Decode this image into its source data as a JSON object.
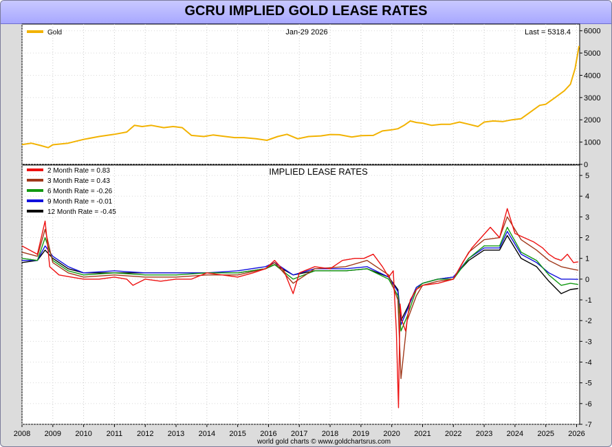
{
  "title": "GCRU IMPLIED GOLD LEASE RATES",
  "footer": "world gold charts © www.goldchartsrus.com",
  "colors": {
    "gold": "#f2b200",
    "m2": "#ee1111",
    "m3": "#a0381a",
    "m6": "#119911",
    "m9": "#1111dd",
    "m12": "#000000",
    "title_bg": "#b6b6ff"
  },
  "chart_data": [
    {
      "type": "line",
      "panel": "price",
      "date_label": "Jan-29  2026",
      "last_label": "Last = 5318.4",
      "series": [
        {
          "name": "Gold",
          "x": [
            2008.0,
            2008.3,
            2008.6,
            2008.85,
            2009.0,
            2009.5,
            2010.0,
            2010.5,
            2011.0,
            2011.4,
            2011.65,
            2011.9,
            2012.2,
            2012.6,
            2012.9,
            2013.2,
            2013.5,
            2013.9,
            2014.2,
            2014.6,
            2014.9,
            2015.2,
            2015.6,
            2015.95,
            2016.3,
            2016.6,
            2016.95,
            2017.3,
            2017.7,
            2018.0,
            2018.3,
            2018.7,
            2019.0,
            2019.4,
            2019.7,
            2020.0,
            2020.2,
            2020.4,
            2020.6,
            2020.8,
            2021.0,
            2021.3,
            2021.6,
            2021.9,
            2022.2,
            2022.5,
            2022.8,
            2023.0,
            2023.3,
            2023.6,
            2023.9,
            2024.2,
            2024.5,
            2024.8,
            2025.0,
            2025.3,
            2025.6,
            2025.8,
            2025.95,
            2026.08
          ],
          "values": [
            890,
            950,
            850,
            750,
            880,
            950,
            1120,
            1250,
            1350,
            1450,
            1750,
            1700,
            1750,
            1650,
            1700,
            1650,
            1300,
            1250,
            1320,
            1250,
            1200,
            1200,
            1150,
            1080,
            1250,
            1350,
            1150,
            1250,
            1280,
            1340,
            1330,
            1230,
            1290,
            1300,
            1500,
            1550,
            1600,
            1750,
            1950,
            1880,
            1850,
            1750,
            1800,
            1800,
            1900,
            1800,
            1700,
            1900,
            1950,
            1920,
            2000,
            2050,
            2350,
            2650,
            2700,
            3000,
            3300,
            3600,
            4300,
            5318
          ]
        }
      ],
      "xlim": [
        2008,
        2026.1
      ],
      "ylim": [
        0,
        6300
      ],
      "yticks": [
        "0",
        "1000",
        "2000",
        "3000",
        "4000",
        "5000",
        "6000"
      ],
      "ytick_values": [
        0,
        1000,
        2000,
        3000,
        4000,
        5000,
        6000
      ]
    },
    {
      "type": "line",
      "panel": "lease",
      "title": "IMPLIED LEASE RATES",
      "series": [
        {
          "name": "2 Month Rate  = 0.83",
          "x": [
            2008.0,
            2008.5,
            2008.75,
            2008.9,
            2009.2,
            2009.6,
            2010.0,
            2010.5,
            2011.0,
            2011.4,
            2011.6,
            2012.0,
            2012.5,
            2013.0,
            2013.5,
            2014.0,
            2014.5,
            2015.0,
            2015.5,
            2015.9,
            2016.2,
            2016.5,
            2016.8,
            2017.0,
            2017.5,
            2018.0,
            2018.4,
            2018.8,
            2019.1,
            2019.4,
            2019.7,
            2019.9,
            2020.05,
            2020.15,
            2020.22,
            2020.27,
            2020.33,
            2020.45,
            2020.6,
            2020.8,
            2021.0,
            2021.5,
            2022.0,
            2022.3,
            2022.6,
            2022.9,
            2023.2,
            2023.5,
            2023.75,
            2024.0,
            2024.3,
            2024.6,
            2024.9,
            2025.1,
            2025.3,
            2025.5,
            2025.7,
            2025.9,
            2026.05
          ],
          "values": [
            1.6,
            1.2,
            2.8,
            0.6,
            0.2,
            0.1,
            0.0,
            0.0,
            0.1,
            0.0,
            -0.3,
            0.0,
            -0.1,
            0.0,
            0.0,
            0.3,
            0.2,
            0.1,
            0.3,
            0.5,
            0.9,
            0.4,
            -0.7,
            0.3,
            0.6,
            0.5,
            0.9,
            1.0,
            1.0,
            1.2,
            0.6,
            0.1,
            0.4,
            -2.5,
            -6.2,
            -1.2,
            -2.0,
            -2.5,
            -1.0,
            -0.5,
            -0.3,
            -0.2,
            0.0,
            0.8,
            1.5,
            2.0,
            2.5,
            2.0,
            3.4,
            2.2,
            2.0,
            1.8,
            1.5,
            1.2,
            1.0,
            0.9,
            1.2,
            0.8,
            0.83
          ]
        },
        {
          "name": "3 Month Rate  = 0.43",
          "x": [
            2008.0,
            2008.5,
            2008.75,
            2009.0,
            2009.5,
            2010.0,
            2011.0,
            2012.0,
            2013.0,
            2014.0,
            2015.0,
            2015.9,
            2016.2,
            2016.8,
            2017.5,
            2018.5,
            2019.2,
            2019.9,
            2020.2,
            2020.3,
            2020.5,
            2020.8,
            2021.0,
            2021.5,
            2022.0,
            2022.5,
            2023.0,
            2023.5,
            2023.75,
            2024.2,
            2024.7,
            2025.1,
            2025.5,
            2025.8,
            2026.05
          ],
          "values": [
            1.3,
            1.1,
            2.4,
            0.8,
            0.3,
            0.1,
            0.2,
            0.1,
            0.1,
            0.2,
            0.2,
            0.5,
            0.8,
            -0.2,
            0.5,
            0.6,
            0.9,
            0.2,
            -1.0,
            -4.8,
            -2.0,
            -0.8,
            -0.3,
            -0.1,
            0.0,
            1.3,
            1.9,
            2.0,
            3.0,
            1.9,
            1.4,
            0.9,
            0.6,
            0.5,
            0.43
          ]
        },
        {
          "name": "6 Month Rate  = -0.26",
          "x": [
            2008.0,
            2008.5,
            2008.75,
            2009.0,
            2009.5,
            2010.0,
            2011.0,
            2012.0,
            2013.0,
            2014.0,
            2015.0,
            2015.9,
            2016.2,
            2016.8,
            2017.5,
            2018.5,
            2019.2,
            2019.9,
            2020.2,
            2020.3,
            2020.5,
            2020.8,
            2021.0,
            2021.5,
            2022.0,
            2022.5,
            2023.0,
            2023.5,
            2023.75,
            2024.2,
            2024.7,
            2025.1,
            2025.5,
            2025.8,
            2026.05
          ],
          "values": [
            1.0,
            0.9,
            2.0,
            0.9,
            0.4,
            0.2,
            0.3,
            0.2,
            0.2,
            0.3,
            0.3,
            0.5,
            0.7,
            0.0,
            0.4,
            0.4,
            0.5,
            0.0,
            -0.8,
            -2.5,
            -1.8,
            -0.5,
            -0.2,
            0.0,
            0.0,
            1.0,
            1.6,
            1.6,
            2.5,
            1.3,
            0.9,
            0.2,
            -0.3,
            -0.2,
            -0.26
          ]
        },
        {
          "name": "9 Month Rate  = -0.01",
          "x": [
            2008.0,
            2008.5,
            2008.75,
            2009.0,
            2009.5,
            2010.0,
            2011.0,
            2012.0,
            2013.0,
            2014.0,
            2015.0,
            2015.9,
            2016.2,
            2016.8,
            2017.5,
            2018.5,
            2019.2,
            2019.9,
            2020.2,
            2020.3,
            2020.5,
            2020.8,
            2021.0,
            2021.5,
            2022.0,
            2022.5,
            2023.0,
            2023.5,
            2023.75,
            2024.2,
            2024.7,
            2025.1,
            2025.5,
            2025.8,
            2026.05
          ],
          "values": [
            0.9,
            0.9,
            1.6,
            1.1,
            0.6,
            0.3,
            0.4,
            0.3,
            0.3,
            0.3,
            0.4,
            0.6,
            0.8,
            0.2,
            0.5,
            0.5,
            0.6,
            0.1,
            -0.6,
            -2.2,
            -1.5,
            -0.4,
            -0.2,
            0.0,
            0.1,
            1.0,
            1.5,
            1.5,
            2.3,
            1.2,
            0.8,
            0.3,
            0.0,
            0.0,
            -0.01
          ]
        },
        {
          "name": "12 Month Rate  = -0.45",
          "x": [
            2008.0,
            2008.5,
            2008.75,
            2009.0,
            2009.5,
            2010.0,
            2011.0,
            2012.0,
            2013.0,
            2014.0,
            2015.0,
            2015.9,
            2016.2,
            2016.8,
            2017.5,
            2018.5,
            2019.2,
            2019.9,
            2020.2,
            2020.3,
            2020.5,
            2020.8,
            2021.0,
            2021.5,
            2022.0,
            2022.5,
            2023.0,
            2023.5,
            2023.75,
            2024.2,
            2024.7,
            2025.1,
            2025.5,
            2025.8,
            2026.05
          ],
          "values": [
            0.8,
            0.9,
            1.4,
            1.0,
            0.5,
            0.3,
            0.3,
            0.3,
            0.3,
            0.3,
            0.3,
            0.5,
            0.7,
            0.2,
            0.4,
            0.4,
            0.5,
            0.1,
            -0.5,
            -2.0,
            -1.4,
            -0.4,
            -0.2,
            0.0,
            0.1,
            0.9,
            1.4,
            1.4,
            2.1,
            1.0,
            0.6,
            -0.1,
            -0.7,
            -0.5,
            -0.45
          ]
        }
      ],
      "xlim": [
        2008,
        2026.1
      ],
      "ylim": [
        -7,
        5.5
      ],
      "yticks": [
        "5",
        "4",
        "3",
        "2",
        "1",
        "0",
        "-1",
        "-2",
        "-3",
        "-4",
        "-5",
        "-6",
        "-7"
      ],
      "ytick_values": [
        5,
        4,
        3,
        2,
        1,
        0,
        -1,
        -2,
        -3,
        -4,
        -5,
        -6,
        -7
      ]
    }
  ],
  "xticks": [
    "2008",
    "2009",
    "2010",
    "2011",
    "2012",
    "2013",
    "2014",
    "2015",
    "2016",
    "2017",
    "2018",
    "2019",
    "2020",
    "2021",
    "2022",
    "2023",
    "2024",
    "2025",
    "2026"
  ],
  "xtick_values": [
    2008,
    2009,
    2010,
    2011,
    2012,
    2013,
    2014,
    2015,
    2016,
    2017,
    2018,
    2019,
    2020,
    2021,
    2022,
    2023,
    2024,
    2025,
    2026
  ]
}
